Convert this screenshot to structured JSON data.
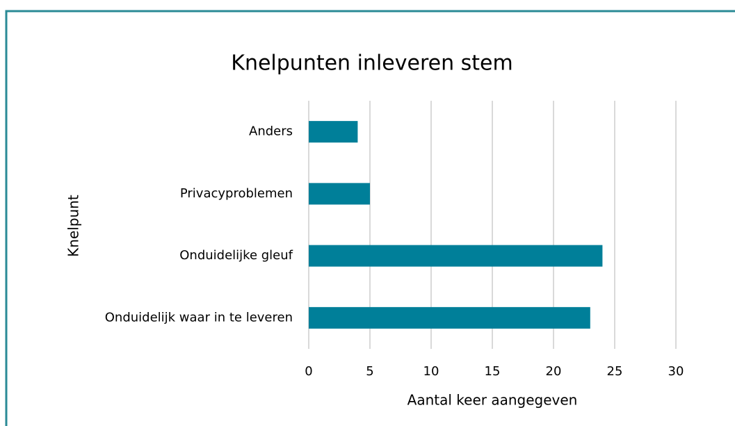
{
  "chart_data": {
    "type": "hbar",
    "title": "Knelpunten inleveren stem",
    "x_label": "Aantal keer aangegeven",
    "y_label": "Knelpunt",
    "categories": [
      "Anders",
      "Privacyproblemen",
      "Onduidelijke gleuf",
      "Onduidelijk waar in te leveren"
    ],
    "values": [
      4,
      5,
      24,
      23
    ],
    "color": "#007f99",
    "xlim": [
      0,
      30
    ],
    "xticks": [
      0,
      5,
      10,
      15,
      20,
      25,
      30
    ],
    "grid": true
  }
}
